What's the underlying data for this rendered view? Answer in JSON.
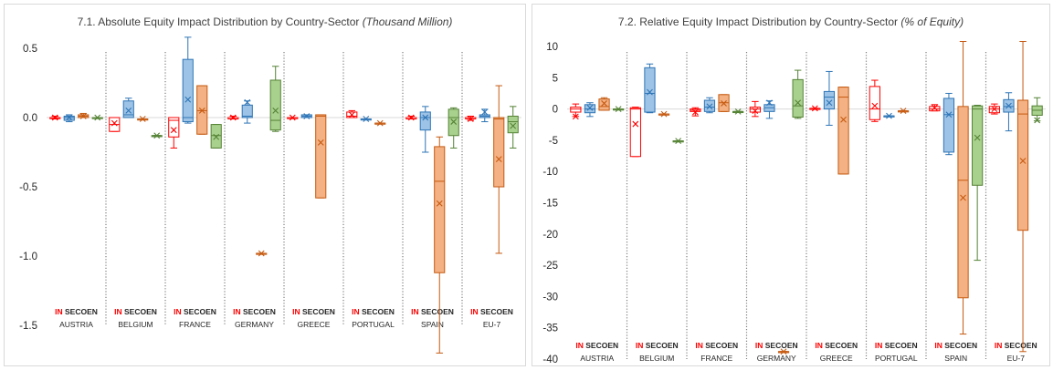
{
  "chart_data": [
    {
      "type": "boxplot",
      "title": "7.1. Absolute Equity Impact Distribution by Country-Sector",
      "title_unit": "(Thousand Million)",
      "ylim": [
        -1.5,
        0.5
      ],
      "yticks": [
        -1.5,
        -1.0,
        -0.5,
        0.0,
        0.5
      ],
      "ytick_labels": [
        "-1.5",
        "-1.0",
        "-0.5",
        "0.0",
        "0.5"
      ],
      "sector_labels": [
        "IN",
        "SE",
        "CO",
        "EN"
      ],
      "countries": [
        {
          "name": "AUSTRIA",
          "boxes": [
            {
              "min": -0.01,
              "q1": 0.0,
              "median": 0.0,
              "q3": 0.0,
              "max": 0.01,
              "mean": 0.0
            },
            {
              "min": -0.03,
              "q1": -0.02,
              "median": 0.0,
              "q3": 0.01,
              "max": 0.02,
              "mean": 0.0
            },
            {
              "min": 0.0,
              "q1": 0.0,
              "median": 0.01,
              "q3": 0.02,
              "max": 0.03,
              "mean": 0.01
            },
            {
              "min": 0.0,
              "q1": 0.0,
              "median": 0.0,
              "q3": 0.0,
              "max": 0.0,
              "mean": 0.0
            }
          ]
        },
        {
          "name": "BELGIUM",
          "boxes": [
            {
              "min": -0.1,
              "q1": -0.1,
              "median": -0.05,
              "q3": 0.0,
              "max": 0.0,
              "mean": -0.04
            },
            {
              "min": 0.0,
              "q1": 0.0,
              "median": 0.02,
              "q3": 0.12,
              "max": 0.14,
              "mean": 0.05
            },
            {
              "min": -0.01,
              "q1": -0.01,
              "median": -0.01,
              "q3": -0.01,
              "max": -0.01,
              "mean": -0.01
            },
            {
              "min": -0.13,
              "q1": -0.13,
              "median": -0.13,
              "q3": -0.13,
              "max": -0.13,
              "mean": -0.13
            }
          ]
        },
        {
          "name": "FRANCE",
          "boxes": [
            {
              "min": -0.22,
              "q1": -0.14,
              "median": -0.02,
              "q3": 0.0,
              "max": 0.0,
              "mean": -0.09
            },
            {
              "min": -0.04,
              "q1": -0.03,
              "median": 0.0,
              "q3": 0.42,
              "max": 0.58,
              "mean": 0.13
            },
            {
              "min": -0.12,
              "q1": -0.12,
              "median": 0.05,
              "q3": 0.23,
              "max": 0.23,
              "mean": 0.05
            },
            {
              "min": -0.22,
              "q1": -0.22,
              "median": -0.13,
              "q3": -0.05,
              "max": -0.05,
              "mean": -0.14
            }
          ]
        },
        {
          "name": "GERMANY",
          "boxes": [
            {
              "min": -0.01,
              "q1": -0.01,
              "median": 0.0,
              "q3": 0.0,
              "max": 0.01,
              "mean": 0.0
            },
            {
              "min": -0.04,
              "q1": 0.0,
              "median": 0.01,
              "q3": 0.09,
              "max": 0.12,
              "mean": 0.11
            },
            {
              "min": -0.98,
              "q1": -0.98,
              "median": -0.98,
              "q3": -0.98,
              "max": -0.98,
              "mean": -0.98
            },
            {
              "min": -0.1,
              "q1": -0.09,
              "median": -0.02,
              "q3": 0.27,
              "max": 0.37,
              "mean": 0.05
            }
          ]
        },
        {
          "name": "GREECE",
          "boxes": [
            {
              "min": 0.0,
              "q1": 0.0,
              "median": 0.0,
              "q3": 0.0,
              "max": 0.0,
              "mean": 0.0
            },
            {
              "min": 0.0,
              "q1": 0.0,
              "median": 0.01,
              "q3": 0.02,
              "max": 0.02,
              "mean": 0.01
            },
            {
              "min": -0.58,
              "q1": -0.58,
              "median": 0.01,
              "q3": 0.02,
              "max": 0.02,
              "mean": -0.18
            }
          ]
        },
        {
          "name": "PORTUGAL",
          "boxes": [
            {
              "min": 0.0,
              "q1": 0.0,
              "median": 0.01,
              "q3": 0.04,
              "max": 0.05,
              "mean": 0.02
            },
            {
              "min": -0.01,
              "q1": -0.01,
              "median": -0.01,
              "q3": -0.01,
              "max": -0.01,
              "mean": -0.01
            },
            {
              "min": -0.04,
              "q1": -0.04,
              "median": -0.04,
              "q3": -0.04,
              "max": -0.04,
              "mean": -0.04
            }
          ]
        },
        {
          "name": "SPAIN",
          "boxes": [
            {
              "min": -0.01,
              "q1": -0.01,
              "median": 0.0,
              "q3": 0.0,
              "max": 0.01,
              "mean": 0.0
            },
            {
              "min": -0.25,
              "q1": -0.09,
              "median": 0.0,
              "q3": 0.04,
              "max": 0.08,
              "mean": 0.0
            },
            {
              "min": -1.7,
              "q1": -1.12,
              "median": -0.46,
              "q3": -0.21,
              "max": -0.14,
              "mean": -0.62
            },
            {
              "min": -0.22,
              "q1": -0.13,
              "median": 0.0,
              "q3": 0.06,
              "max": 0.07,
              "mean": -0.03
            }
          ]
        },
        {
          "name": "EU-7",
          "boxes": [
            {
              "min": -0.02,
              "q1": -0.01,
              "median": 0.0,
              "q3": 0.0,
              "max": 0.01,
              "mean": -0.01
            },
            {
              "min": -0.03,
              "q1": 0.0,
              "median": 0.01,
              "q3": 0.02,
              "max": 0.06,
              "mean": 0.04
            },
            {
              "min": -0.98,
              "q1": -0.5,
              "median": -0.01,
              "q3": 0.0,
              "max": 0.23,
              "mean": -0.3
            },
            {
              "min": -0.22,
              "q1": -0.11,
              "median": -0.03,
              "q3": 0.01,
              "max": 0.08,
              "mean": -0.06
            }
          ]
        }
      ]
    },
    {
      "type": "boxplot",
      "title": "7.2. Relative Equity Impact Distribution by Country-Sector",
      "title_unit": "(% of Equity)",
      "ylim": [
        -40,
        10
      ],
      "yticks": [
        -40,
        -35,
        -30,
        -25,
        -20,
        -15,
        -10,
        -5,
        0,
        5,
        10
      ],
      "ytick_labels": [
        "-40",
        "-35",
        "-30",
        "-25",
        "-20",
        "-15",
        "-10",
        "-5",
        "0",
        "5",
        "10"
      ],
      "sector_labels": [
        "IN",
        "SE",
        "CO",
        "EN"
      ],
      "countries": [
        {
          "name": "AUSTRIA",
          "boxes": [
            {
              "min": -1.2,
              "q1": -0.5,
              "median": 0.0,
              "q3": 0.3,
              "max": 0.8,
              "mean": -1.2
            },
            {
              "min": -1.2,
              "q1": -0.6,
              "median": 0.0,
              "q3": 0.7,
              "max": 1.0,
              "mean": 0.2
            },
            {
              "min": -0.2,
              "q1": -0.2,
              "median": 0.4,
              "q3": 1.6,
              "max": 1.8,
              "mean": 0.9
            },
            {
              "min": 0.0,
              "q1": 0.0,
              "median": 0.0,
              "q3": 0.0,
              "max": 0.0,
              "mean": 0.0
            }
          ]
        },
        {
          "name": "BELGIUM",
          "boxes": [
            {
              "min": -7.6,
              "q1": -7.6,
              "median": 0.0,
              "q3": 0.2,
              "max": 0.3,
              "mean": -2.4
            },
            {
              "min": -0.6,
              "q1": -0.5,
              "median": 2.5,
              "q3": 6.6,
              "max": 7.2,
              "mean": 2.7
            },
            {
              "min": -0.8,
              "q1": -0.8,
              "median": -0.8,
              "q3": -0.8,
              "max": -0.8,
              "mean": -0.8
            },
            {
              "min": -5.1,
              "q1": -5.1,
              "median": -5.1,
              "q3": -5.1,
              "max": -5.1,
              "mean": -5.1
            }
          ]
        },
        {
          "name": "FRANCE",
          "boxes": [
            {
              "min": -1.1,
              "q1": -0.4,
              "median": -0.2,
              "q3": 0.0,
              "max": 0.2,
              "mean": -0.5
            },
            {
              "min": -0.6,
              "q1": -0.4,
              "median": 0.3,
              "q3": 1.4,
              "max": 1.8,
              "mean": 0.4
            },
            {
              "min": -0.4,
              "q1": -0.4,
              "median": 1.0,
              "q3": 2.3,
              "max": 2.3,
              "mean": 0.9
            },
            {
              "min": -0.4,
              "q1": -0.4,
              "median": -0.4,
              "q3": -0.4,
              "max": -0.4,
              "mean": -0.4
            }
          ]
        },
        {
          "name": "GERMANY",
          "boxes": [
            {
              "min": -1.2,
              "q1": -0.5,
              "median": 0.0,
              "q3": 0.3,
              "max": 1.2,
              "mean": -0.3
            },
            {
              "min": -1.5,
              "q1": -0.4,
              "median": 0.2,
              "q3": 0.7,
              "max": 1.3,
              "mean": 1.0
            },
            {
              "min": -38.8,
              "q1": -38.8,
              "median": -38.8,
              "q3": -38.8,
              "max": -38.8,
              "mean": -38.8
            },
            {
              "min": -1.5,
              "q1": -1.3,
              "median": 0.5,
              "q3": 4.7,
              "max": 6.2,
              "mean": 1.0
            }
          ]
        },
        {
          "name": "GREECE",
          "boxes": [
            {
              "min": 0.1,
              "q1": 0.1,
              "median": 0.1,
              "q3": 0.1,
              "max": 0.1,
              "mean": 0.1
            },
            {
              "min": -2.6,
              "q1": 0.0,
              "median": 1.9,
              "q3": 2.8,
              "max": 6.0,
              "mean": 1.0
            },
            {
              "min": -10.4,
              "q1": -10.4,
              "median": 1.9,
              "q3": 3.5,
              "max": 3.5,
              "mean": -1.7
            }
          ]
        },
        {
          "name": "PORTUGAL",
          "boxes": [
            {
              "min": -2.0,
              "q1": -1.7,
              "median": 0.0,
              "q3": 3.6,
              "max": 4.6,
              "mean": 0.5
            },
            {
              "min": -1.1,
              "q1": -1.1,
              "median": -1.1,
              "q3": -1.1,
              "max": -1.1,
              "mean": -1.1
            },
            {
              "min": -0.3,
              "q1": -0.3,
              "median": -0.3,
              "q3": -0.3,
              "max": -0.3,
              "mean": -0.3
            }
          ]
        },
        {
          "name": "SPAIN",
          "boxes": [
            {
              "min": -0.3,
              "q1": -0.3,
              "median": 0.0,
              "q3": 0.4,
              "max": 0.7,
              "mean": 0.2
            },
            {
              "min": -7.3,
              "q1": -6.9,
              "median": -0.9,
              "q3": 1.7,
              "max": 2.5,
              "mean": -0.9
            },
            {
              "min": -36.0,
              "q1": -30.2,
              "median": -11.4,
              "q3": 0.4,
              "max": 10.8,
              "mean": -14.2
            },
            {
              "min": -24.2,
              "q1": -12.2,
              "median": 0.0,
              "q3": 0.5,
              "max": 0.6,
              "mean": -4.6
            }
          ]
        },
        {
          "name": "EU-7",
          "boxes": [
            {
              "min": -0.8,
              "q1": -0.6,
              "median": 0.0,
              "q3": 0.4,
              "max": 0.8,
              "mean": 0.0
            },
            {
              "min": -3.5,
              "q1": -0.5,
              "median": 0.4,
              "q3": 1.5,
              "max": 2.6,
              "mean": 0.5
            },
            {
              "min": -38.8,
              "q1": -19.4,
              "median": -0.8,
              "q3": 1.4,
              "max": 10.8,
              "mean": -8.3
            },
            {
              "min": -1.9,
              "q1": -1.0,
              "median": -0.2,
              "q3": 0.5,
              "max": 1.8,
              "mean": -1.8
            }
          ]
        }
      ]
    }
  ],
  "colors": {
    "IN_stroke": "#ff0000",
    "IN_fill": "#ffffff",
    "IN_label": "#ff0000",
    "SE_stroke": "#2e75b6",
    "SE_fill": "#9dc3e6",
    "CO_stroke": "#c55a11",
    "CO_fill": "#f4b183",
    "EN_stroke": "#548235",
    "EN_fill": "#a9d18e",
    "label": "#262626",
    "axis": "#595959",
    "separator": "#7f7f7f"
  }
}
